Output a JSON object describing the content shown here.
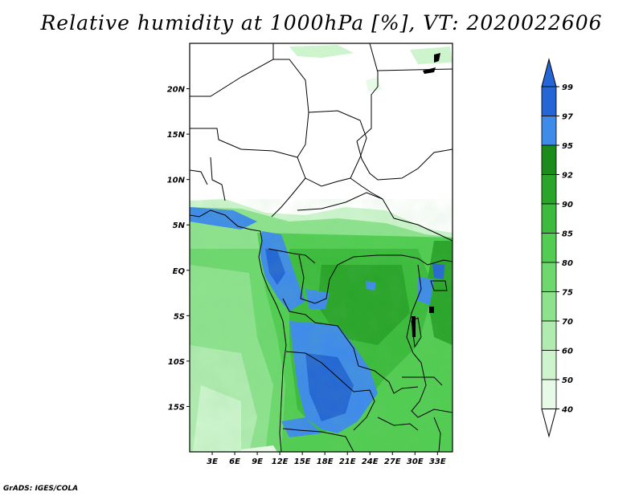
{
  "title": "Relative humidity at 1000hPa [%], VT: 2020022606",
  "credit": "GrADS: IGES/COLA",
  "map": {
    "lon_range": [
      0,
      35
    ],
    "lat_range": [
      -20,
      25
    ],
    "lat_ticks": [
      "20N",
      "15N",
      "10N",
      "5N",
      "EQ",
      "5S",
      "10S",
      "15S"
    ],
    "lon_ticks": [
      "3E",
      "6E",
      "9E",
      "12E",
      "15E",
      "18E",
      "21E",
      "24E",
      "27E",
      "30E",
      "33E"
    ]
  },
  "colorbar": {
    "levels": [
      "99",
      "97",
      "95",
      "92",
      "90",
      "85",
      "80",
      "75",
      "70",
      "60",
      "50",
      "40"
    ],
    "colors": [
      "#2466d6",
      "#3f8bea",
      "#1b8c1b",
      "#2aa52a",
      "#3cbb3c",
      "#52cd52",
      "#6ed86e",
      "#8ee28e",
      "#b0ebb0",
      "#cdf4cd",
      "#e7fae7",
      "#ffffff",
      "#2466d6"
    ]
  }
}
